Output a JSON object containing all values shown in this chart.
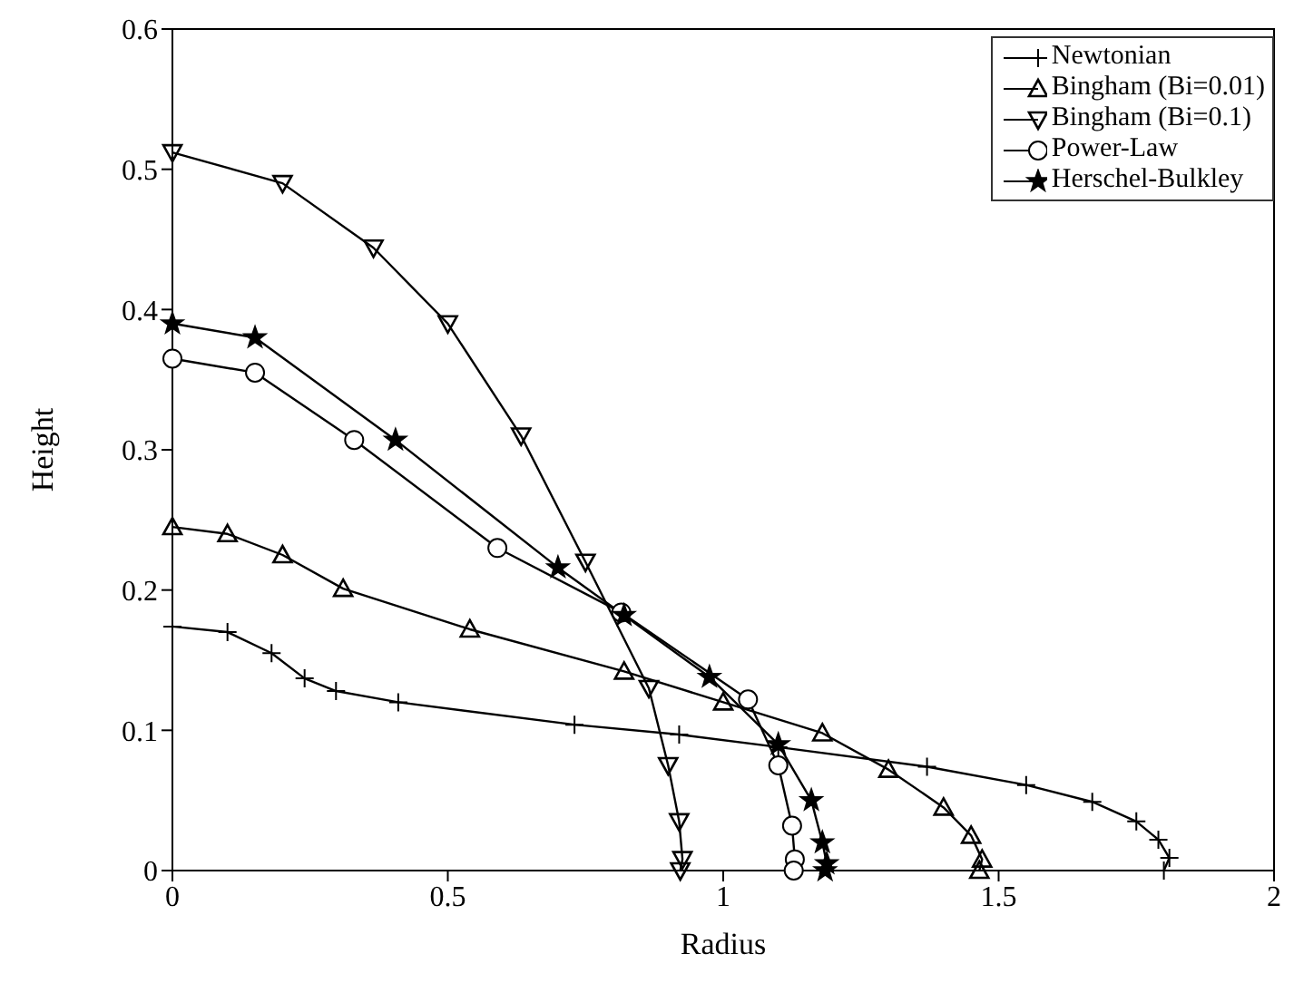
{
  "chart_data": {
    "type": "line",
    "xlabel": "Radius",
    "ylabel": "Height",
    "xlim": [
      0,
      2
    ],
    "xticks": [
      0,
      0.5,
      1,
      1.5,
      2
    ],
    "ylim": [
      0,
      0.6
    ],
    "yticks": [
      0,
      0.1,
      0.2,
      0.3,
      0.4,
      0.5,
      0.6
    ],
    "legend": "top right",
    "line_style": "solid",
    "series": [
      {
        "name": "Newtonian",
        "color": "#000000",
        "marker": "cross",
        "x": [
          0,
          0.1,
          0.18,
          0.24,
          0.297,
          0.41,
          0.73,
          0.92,
          1.1,
          1.37,
          1.55,
          1.67,
          1.75,
          1.79,
          1.81,
          1.8
        ],
        "values": [
          0.174,
          0.17,
          0.155,
          0.137,
          0.128,
          0.12,
          0.104,
          0.097,
          0.088,
          0.074,
          0.061,
          0.049,
          0.035,
          0.022,
          0.009,
          0
        ]
      },
      {
        "name": "Bingham (Bi=0.01)",
        "color": "#000000",
        "marker": "triangle",
        "x": [
          0,
          0.1,
          0.2,
          0.31,
          0.54,
          0.82,
          1.0,
          1.18,
          1.3,
          1.4,
          1.45,
          1.47,
          1.465
        ],
        "values": [
          0.245,
          0.24,
          0.225,
          0.201,
          0.172,
          0.142,
          0.12,
          0.098,
          0.072,
          0.045,
          0.025,
          0.008,
          0
        ]
      },
      {
        "name": "Bingham (Bi=0.1)",
        "color": "#000000",
        "marker": "triangle-down",
        "x": [
          0,
          0.2,
          0.365,
          0.5,
          0.633,
          0.75,
          0.865,
          0.9,
          0.92,
          0.926,
          0.922
        ],
        "values": [
          0.512,
          0.49,
          0.444,
          0.39,
          0.31,
          0.22,
          0.13,
          0.075,
          0.035,
          0.008,
          0
        ]
      },
      {
        "name": "Power-Law",
        "color": "#000000",
        "marker": "circle",
        "x": [
          0,
          0.15,
          0.33,
          0.59,
          0.815,
          1.045,
          1.1,
          1.125,
          1.13,
          1.128
        ],
        "values": [
          0.365,
          0.355,
          0.307,
          0.23,
          0.184,
          0.122,
          0.075,
          0.032,
          0.008,
          0
        ]
      },
      {
        "name": "Herschel-Bulkley",
        "color": "#000000",
        "marker": "star",
        "x": [
          0,
          0.15,
          0.405,
          0.7,
          0.82,
          0.975,
          1.1,
          1.16,
          1.18,
          1.188,
          1.185
        ],
        "values": [
          0.39,
          0.38,
          0.307,
          0.216,
          0.182,
          0.138,
          0.09,
          0.05,
          0.02,
          0.005,
          0
        ]
      }
    ]
  }
}
